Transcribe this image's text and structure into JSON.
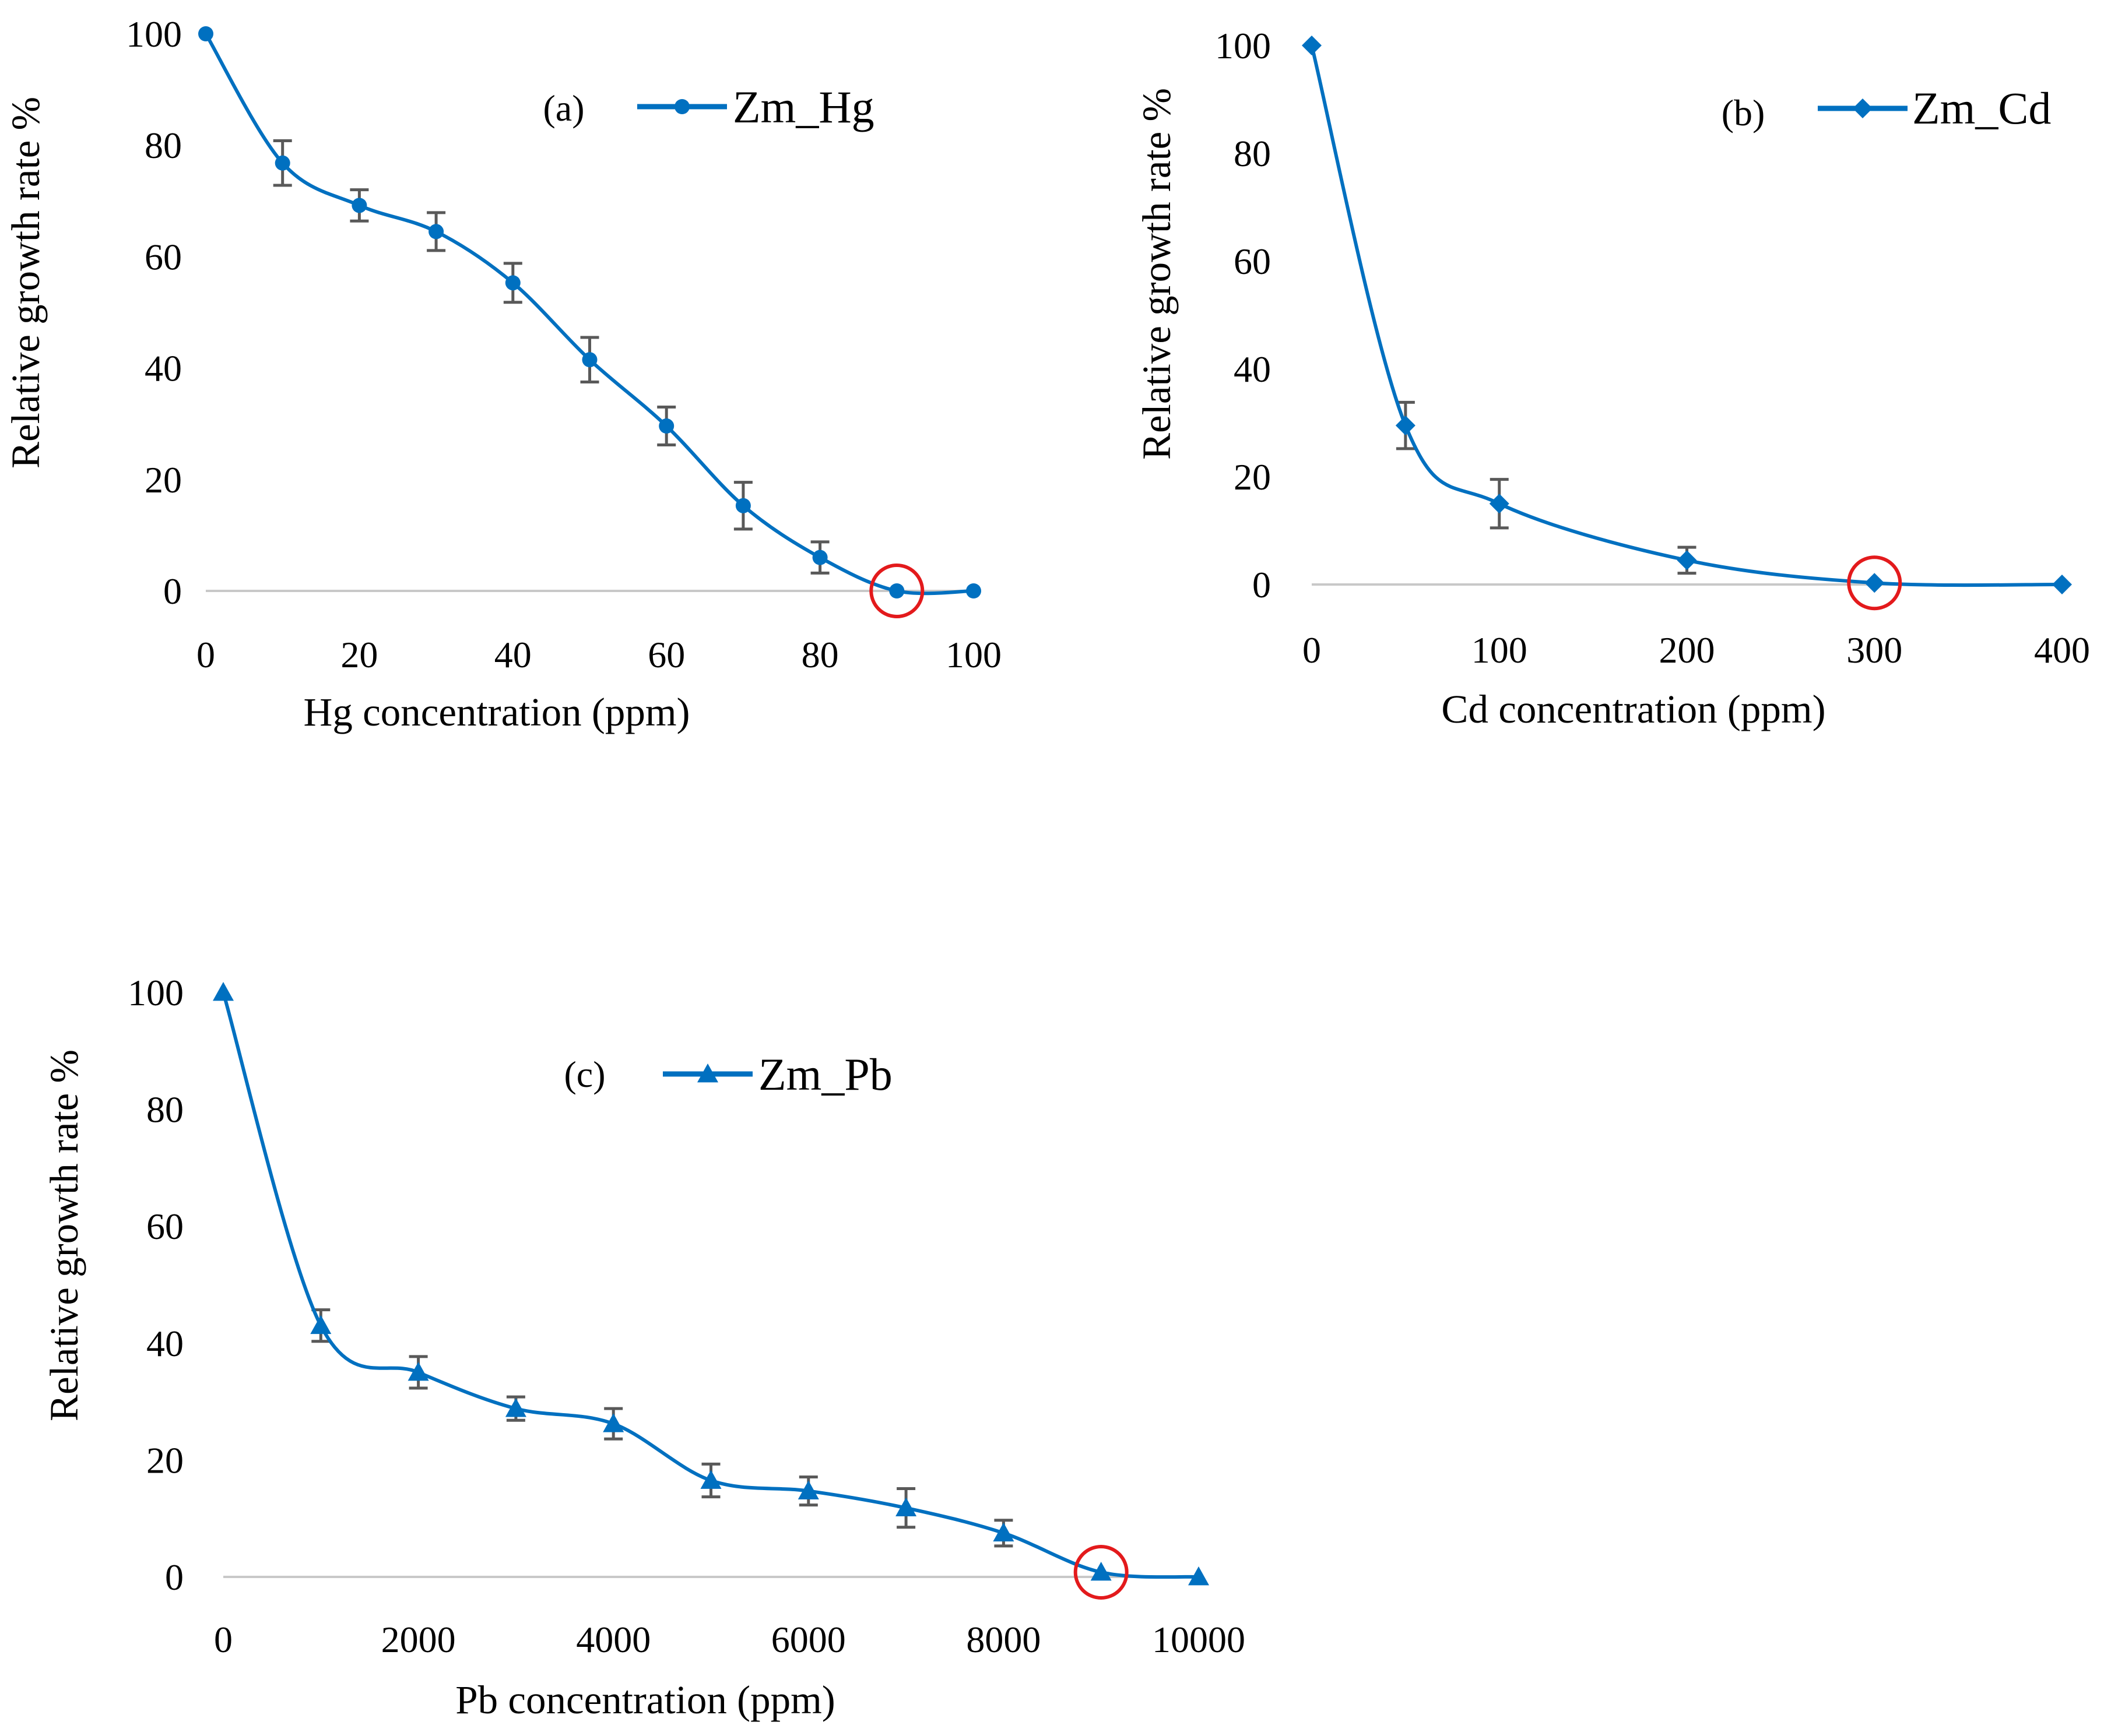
{
  "chart_data": [
    {
      "type": "line",
      "panel_label": "(a)",
      "series_name": "Zm_Hg",
      "marker": "circle",
      "x": [
        0,
        10,
        20,
        30,
        40,
        50,
        60,
        70,
        80,
        90,
        100
      ],
      "y": [
        100,
        76.8,
        69.2,
        64.5,
        55.3,
        41.5,
        29.6,
        15.3,
        6.0,
        0,
        0
      ],
      "err": [
        0,
        4.0,
        2.8,
        3.4,
        3.5,
        4.0,
        3.4,
        4.2,
        2.8,
        0,
        0
      ],
      "xlabel": "Hg concentration (ppm)",
      "ylabel": "Relative growth rate %",
      "xlim": [
        0,
        100
      ],
      "xticks": [
        0,
        20,
        40,
        60,
        80,
        100
      ],
      "ylim": [
        0,
        100
      ],
      "yticks": [
        0,
        20,
        40,
        60,
        80,
        100
      ],
      "highlight_x": 90,
      "legend": "top-right"
    },
    {
      "type": "line",
      "panel_label": "(b)",
      "series_name": "Zm_Cd",
      "marker": "diamond",
      "x": [
        0,
        50,
        100,
        200,
        300,
        400
      ],
      "y": [
        100,
        29.5,
        15.0,
        4.5,
        0.3,
        0
      ],
      "err": [
        0,
        4.3,
        4.5,
        2.4,
        0,
        0
      ],
      "xlabel": "Cd concentration (ppm)",
      "ylabel": "Relative growth rate %",
      "xlim": [
        0,
        400
      ],
      "xticks": [
        0,
        100,
        200,
        300,
        400
      ],
      "ylim": [
        0,
        100
      ],
      "yticks": [
        0,
        20,
        40,
        60,
        80,
        100
      ],
      "highlight_x": 300,
      "legend": "top-right"
    },
    {
      "type": "line",
      "panel_label": "(c)",
      "series_name": "Zm_Pb",
      "marker": "triangle",
      "x": [
        0,
        1000,
        2000,
        3000,
        4000,
        5000,
        6000,
        7000,
        8000,
        9000,
        10000
      ],
      "y": [
        100,
        43.0,
        35.0,
        28.8,
        26.2,
        16.5,
        14.7,
        11.8,
        7.5,
        0.8,
        0
      ],
      "err": [
        0,
        2.7,
        2.7,
        2.0,
        2.6,
        2.8,
        2.4,
        3.3,
        2.2,
        0,
        0
      ],
      "xlabel": "Pb concentration (ppm)",
      "ylabel": "Relative growth rate %",
      "xlim": [
        0,
        10000
      ],
      "xticks": [
        0,
        2000,
        4000,
        6000,
        8000,
        10000
      ],
      "ylim": [
        0,
        100
      ],
      "yticks": [
        0,
        20,
        40,
        60,
        80,
        100
      ],
      "highlight_x": 9000,
      "legend": "top-center"
    }
  ],
  "colors": {
    "line": "#0070c0",
    "error_bar": "#595959",
    "baseline": "#c8c8c8",
    "highlight": "#e31a1c"
  }
}
